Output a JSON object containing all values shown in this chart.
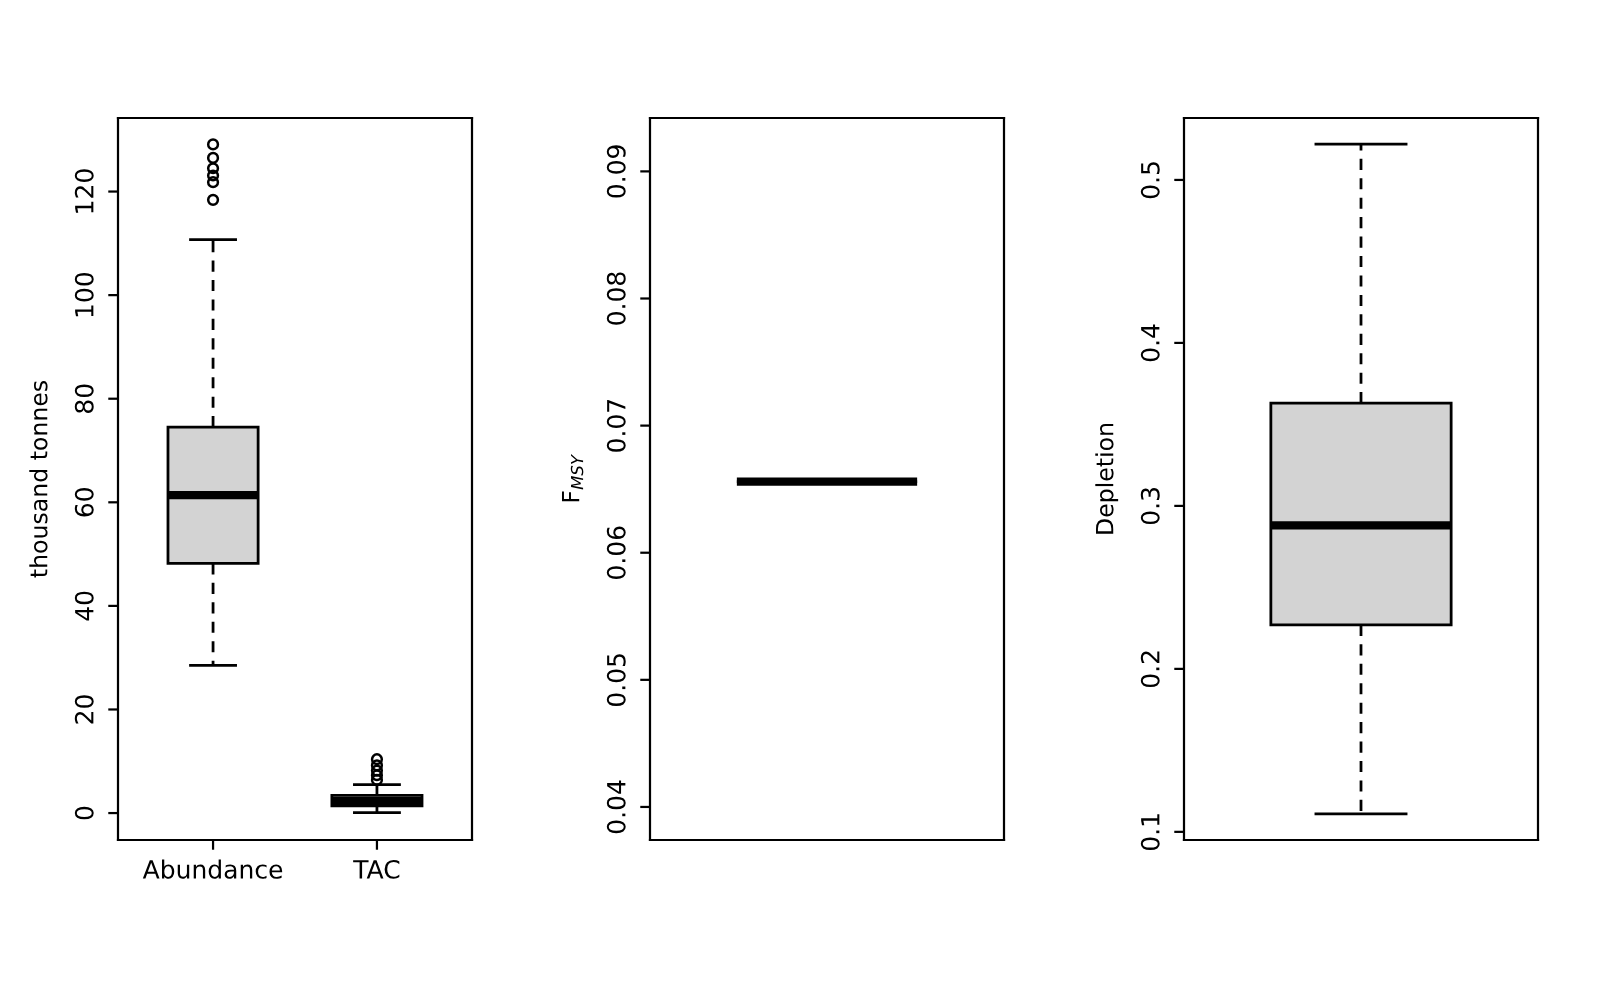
{
  "chart_data": [
    {
      "type": "box",
      "categories": [
        "Abundance",
        "TAC"
      ],
      "ylabel": "thousand tonnes",
      "color": "#d3d3d3",
      "ylim": [
        -5.2,
        134.2
      ],
      "yticks": [
        0,
        20,
        40,
        60,
        80,
        100,
        120
      ],
      "grid": false,
      "boxes": [
        {
          "low": 28.5,
          "q1": 48.2,
          "median": 61.4,
          "q3": 74.5,
          "high": 110.7,
          "outliers": [
            129.1,
            126.5,
            124.5,
            123.1,
            121.8,
            118.4
          ]
        },
        {
          "low": 0.1,
          "q1": 1.4,
          "median": 2.3,
          "q3": 3.4,
          "high": 5.5,
          "outliers": [
            10.4,
            9.2,
            8.2,
            7.3,
            6.4
          ]
        }
      ]
    },
    {
      "type": "box",
      "categories": [
        null
      ],
      "ylabel": "F$_{MSY}$",
      "ylim": [
        0.0374,
        0.0942
      ],
      "yticks": [
        0.04,
        0.05,
        0.06,
        0.07,
        0.08,
        0.09
      ],
      "grid": false,
      "boxes": [
        {
          "low": 0.0656,
          "q1": 0.0656,
          "median": 0.0656,
          "q3": 0.0656,
          "high": 0.0656
        }
      ]
    },
    {
      "type": "box",
      "categories": [
        null
      ],
      "ylabel": "Depletion",
      "color": "#d3d3d3",
      "ylim": [
        0.095,
        0.538
      ],
      "yticks": [
        0.1,
        0.2,
        0.3,
        0.4,
        0.5
      ],
      "grid": false,
      "boxes": [
        {
          "low": 0.111,
          "q1": 0.227,
          "median": 0.288,
          "q3": 0.363,
          "high": 0.522
        }
      ]
    }
  ]
}
